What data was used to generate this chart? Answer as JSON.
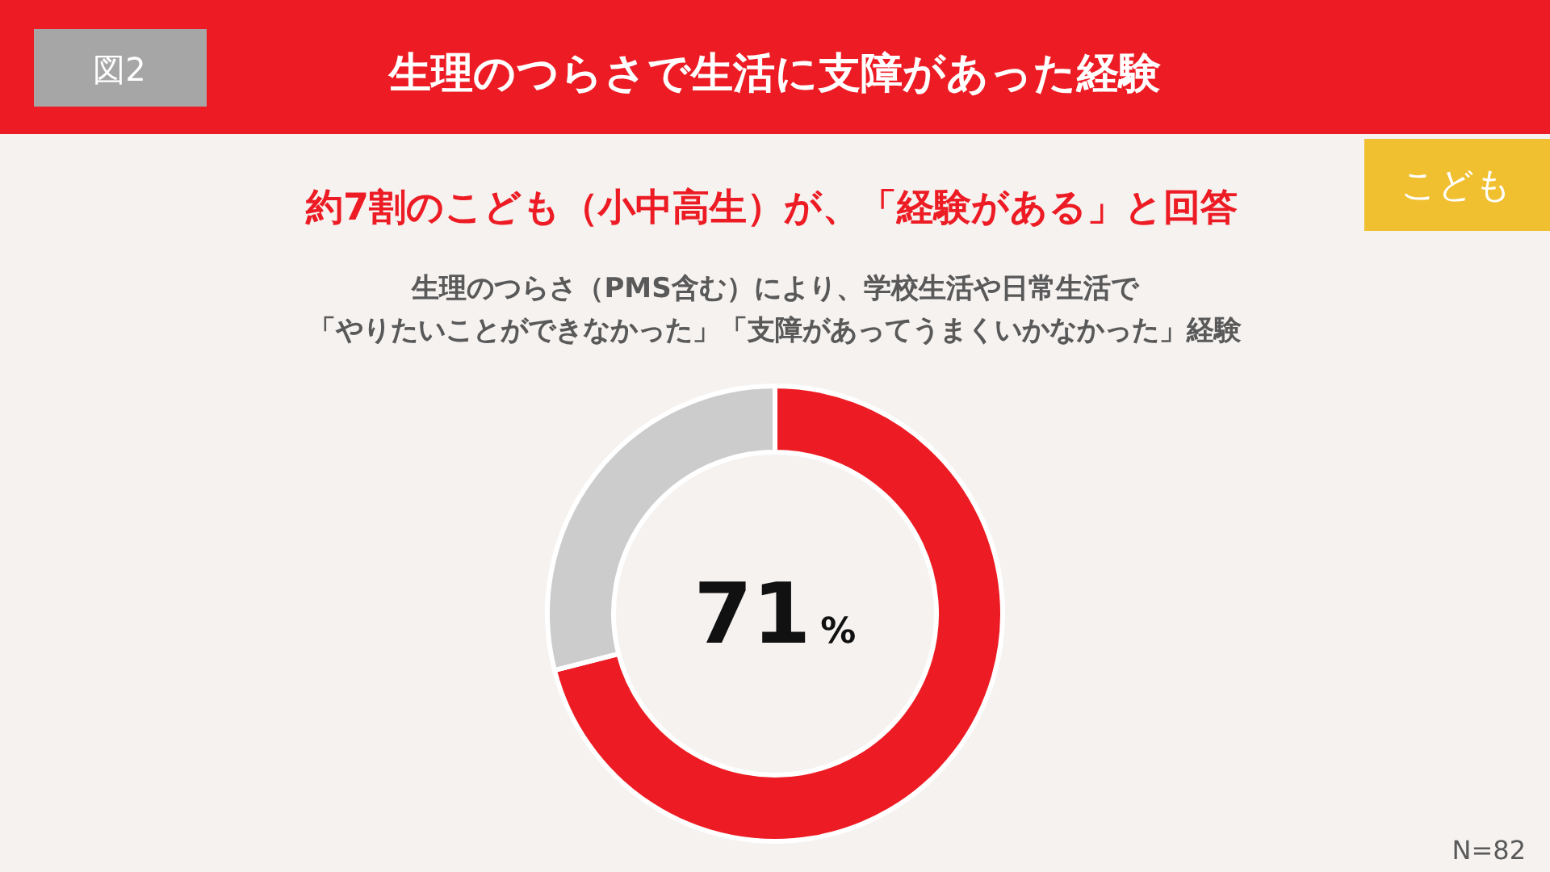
{
  "chart_data": {
    "type": "donut",
    "title": "生理のつらさで生活に支障があった経験",
    "subtitle": "約7割のこども（小中高生）が、「経験がある」と回答",
    "categories": [
      null,
      null
    ],
    "values": [
      71,
      29
    ],
    "colors": [
      "#ed1c24",
      "#cccccc"
    ],
    "value_labels": [
      "71%",
      null
    ],
    "annotations": [
      "図2",
      "こども",
      "生理のつらさ（PMS含む）により、学校生活や日常生活で",
      "「やりたいことができなかった」「支障があってうまくいかなかった」経験",
      "N=82"
    ]
  }
}
